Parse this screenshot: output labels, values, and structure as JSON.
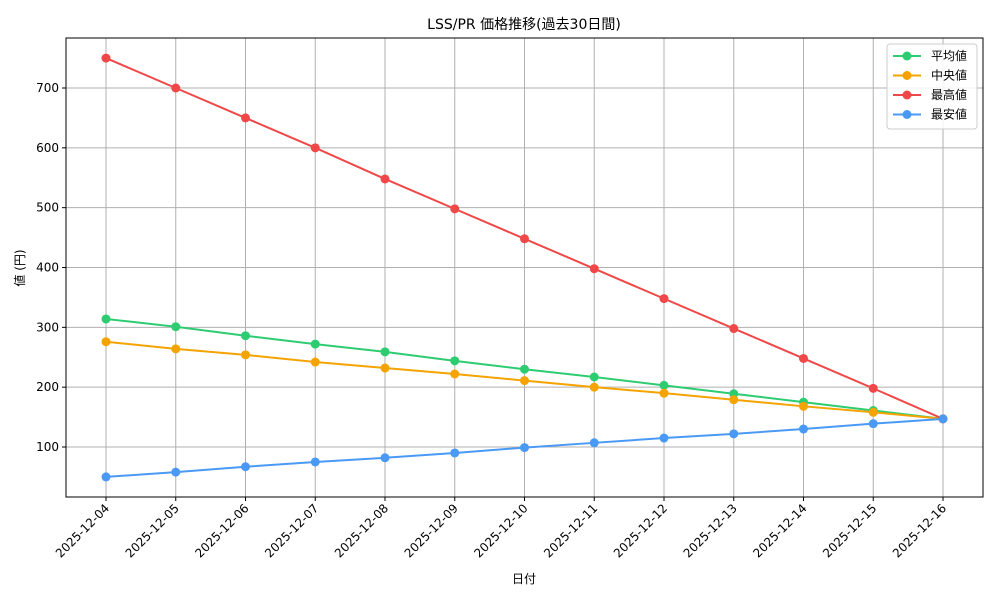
{
  "chart_data": {
    "type": "line",
    "title": "LSS/PR 価格推移(過去30日間)",
    "xlabel": "日付",
    "ylabel": "値 (円)",
    "x": [
      "2025-12-04",
      "2025-12-05",
      "2025-12-06",
      "2025-12-07",
      "2025-12-08",
      "2025-12-09",
      "2025-12-10",
      "2025-12-11",
      "2025-12-12",
      "2025-12-13",
      "2025-12-14",
      "2025-12-15",
      "2025-12-16"
    ],
    "yticks": [
      100,
      200,
      300,
      400,
      500,
      600,
      700
    ],
    "ylim": [
      12,
      785
    ],
    "grid": true,
    "legend_position": "upper right",
    "series": [
      {
        "name": "平均値",
        "color": "#2ecc71",
        "values": [
          314,
          301,
          286,
          272,
          259,
          244,
          230,
          217,
          203,
          189,
          175,
          161,
          147
        ]
      },
      {
        "name": "中央値",
        "color": "#f5a300",
        "values": [
          276,
          264,
          254,
          242,
          232,
          222,
          211,
          200,
          190,
          179,
          168,
          158,
          147
        ]
      },
      {
        "name": "最高値",
        "color": "#f04848",
        "values": [
          750,
          700,
          650,
          600,
          548,
          498,
          448,
          398,
          348,
          298,
          248,
          198,
          147
        ]
      },
      {
        "name": "最安値",
        "color": "#4a9af5",
        "values": [
          50,
          58,
          67,
          75,
          82,
          90,
          99,
          107,
          115,
          122,
          130,
          139,
          147
        ]
      }
    ]
  }
}
